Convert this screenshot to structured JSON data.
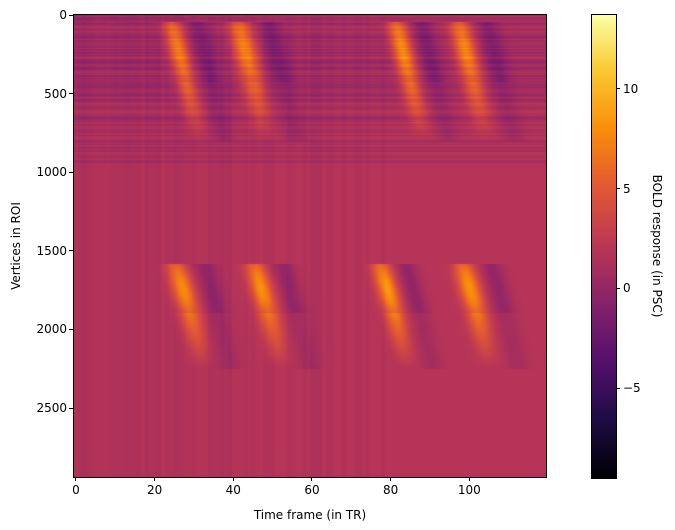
{
  "chart_data": {
    "type": "heatmap",
    "title": "",
    "xlabel": "Time frame (in TR)",
    "ylabel": "Vertices in ROI",
    "colorbar_label": "BOLD response (in PSC)",
    "colormap": "inferno",
    "x_ticks": [
      0,
      20,
      40,
      60,
      80,
      100
    ],
    "y_ticks": [
      0,
      500,
      1000,
      1500,
      2000,
      2500
    ],
    "colorbar_ticks": [
      -5,
      0,
      5,
      10
    ],
    "colorbar_tick_labels": [
      "−5",
      "0",
      "5",
      "10"
    ],
    "xlim": [
      -0.5,
      119.5
    ],
    "ylim": [
      2938,
      0
    ],
    "clim": [
      -9.5,
      13.7
    ],
    "n_timepoints": 120,
    "n_vertices": 2938,
    "background_value": 0.3,
    "bands": [
      {
        "name": "band-1",
        "vertex_start": 40,
        "vertex_end": 420,
        "tail_end": 800
      },
      {
        "name": "band-2",
        "vertex_start": 1580,
        "vertex_end": 1890,
        "tail_end": 2250
      }
    ],
    "events": [
      {
        "band": 0,
        "tr_start": 21,
        "tr_peak": 26,
        "tr_end": 31,
        "peak": 9
      },
      {
        "band": 0,
        "tr_start": 36,
        "tr_peak": 43,
        "tr_end": 48,
        "peak": 9
      },
      {
        "band": 0,
        "tr_start": 78,
        "tr_peak": 83,
        "tr_end": 88,
        "peak": 9.5
      },
      {
        "band": 0,
        "tr_start": 93,
        "tr_peak": 99,
        "tr_end": 104,
        "peak": 9
      },
      {
        "band": 1,
        "tr_start": 20,
        "tr_peak": 27,
        "tr_end": 31,
        "peak": 8.5
      },
      {
        "band": 1,
        "tr_start": 42,
        "tr_peak": 47,
        "tr_end": 53,
        "peak": 8.5
      },
      {
        "band": 1,
        "tr_start": 74,
        "tr_peak": 79,
        "tr_end": 84,
        "peak": 9
      },
      {
        "band": 1,
        "tr_start": 95,
        "tr_peak": 100,
        "tr_end": 106,
        "peak": 8.5
      }
    ]
  }
}
